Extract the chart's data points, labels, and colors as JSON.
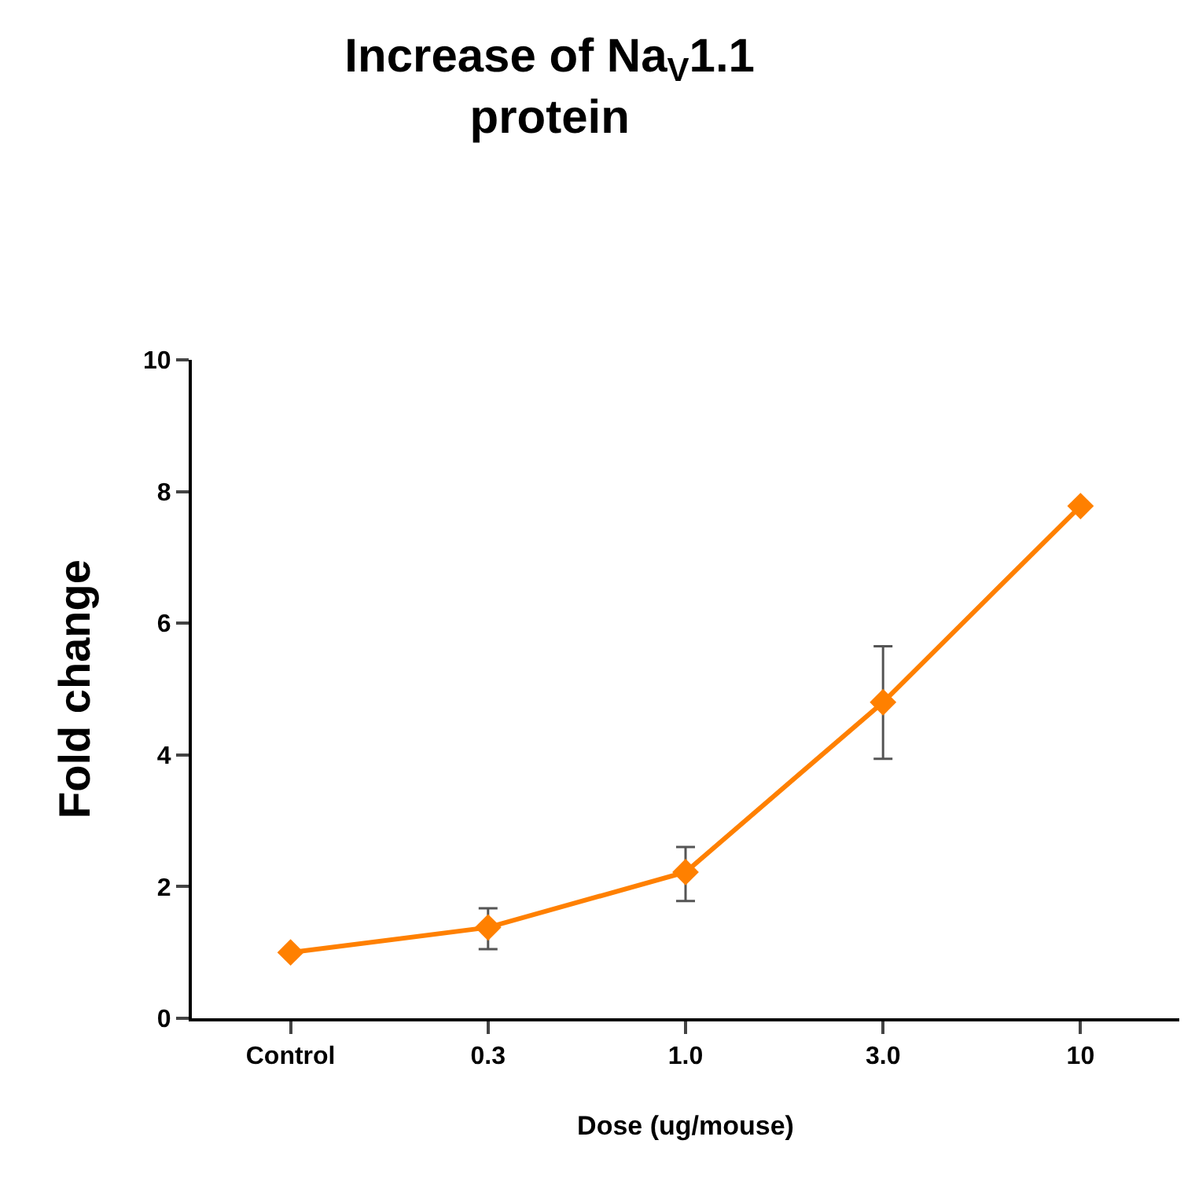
{
  "chart_data": {
    "type": "line",
    "title": "Increase of Na$_{V}$1.1\nprotein",
    "xlabel": "Dose (ug/mouse)",
    "ylabel": "Fold change",
    "categories": [
      "Control",
      "0.3",
      "1.0",
      "3.0",
      "10"
    ],
    "series": [
      {
        "color": "#ff8000",
        "values": [
          1.0,
          1.38,
          2.22,
          4.8,
          7.78
        ],
        "errors": [
          null,
          [
            1.05,
            1.67
          ],
          [
            1.78,
            2.6
          ],
          [
            3.94,
            5.65
          ],
          null
        ]
      }
    ],
    "ylim": [
      0,
      10
    ],
    "yticks": [
      0,
      2,
      4,
      6,
      8,
      10
    ],
    "marker": "diamond",
    "line_style": "solid"
  }
}
